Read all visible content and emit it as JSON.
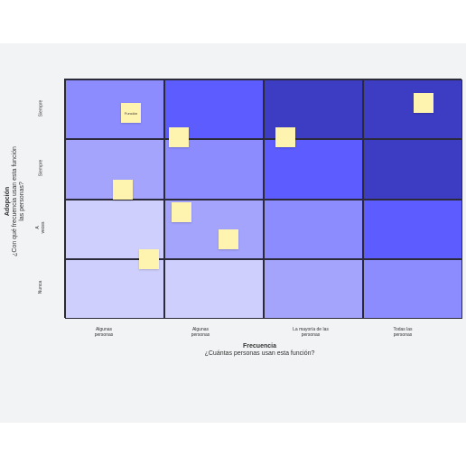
{
  "colors": {
    "background": "#f2f3f5",
    "note": "#fff3b0",
    "cells": [
      [
        "#8c8cff",
        "#5c5cff",
        "#3d3dc4",
        "#3d3dc4"
      ],
      [
        "#a4a4fd",
        "#8c8cff",
        "#5c5cff",
        "#3d3dc4"
      ],
      [
        "#cfcffd",
        "#a4a4fd",
        "#8c8cff",
        "#5c5cff"
      ],
      [
        "#cfcffd",
        "#cfcffd",
        "#a4a4fd",
        "#8c8cff"
      ]
    ]
  },
  "y_axis": {
    "title": "Adopción",
    "subtitle": "¿Con qué frecuencia usan esta función las personas?",
    "rows": [
      "Siempre",
      "Siempre",
      "A veces",
      "Nunca"
    ]
  },
  "x_axis": {
    "title": "Frecuencia",
    "subtitle": "¿Cuántas personas usan esta función?",
    "columns": [
      "Algunas personas",
      "Algunas personas",
      "La mayoría de las personas",
      "Todas las personas"
    ]
  },
  "notes": [
    {
      "text": "Función"
    },
    {
      "text": ""
    },
    {
      "text": ""
    },
    {
      "text": ""
    },
    {
      "text": ""
    },
    {
      "text": ""
    },
    {
      "text": ""
    },
    {
      "text": ""
    }
  ]
}
